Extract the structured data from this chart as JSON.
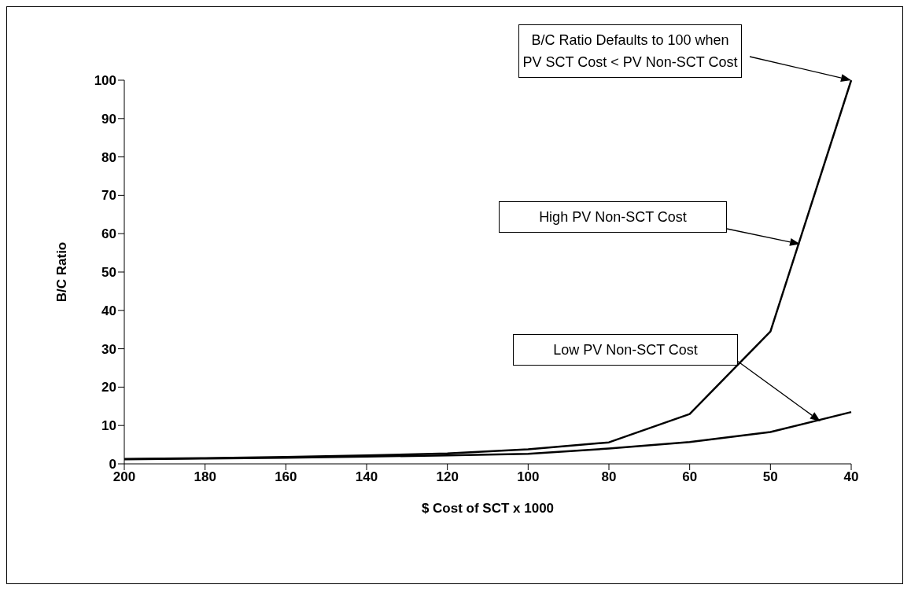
{
  "chart_data": {
    "type": "line",
    "xlabel": "$ Cost of SCT x 1000",
    "ylabel": "B/C Ratio",
    "categories": [
      "200",
      "180",
      "160",
      "140",
      "120",
      "100",
      "80",
      "60",
      "50",
      "40"
    ],
    "series": [
      {
        "color": "#000000",
        "values": [
          1.3,
          1.5,
          1.8,
          2.2,
          2.7,
          3.8,
          5.6,
          13,
          34.5,
          100
        ]
      },
      {
        "color": "#000000",
        "values": [
          1.2,
          1.4,
          1.6,
          1.9,
          2.2,
          2.6,
          4,
          5.7,
          8.3,
          13.5
        ]
      }
    ],
    "ylim": [
      0,
      100
    ],
    "yticks": [
      0,
      10,
      20,
      30,
      40,
      50,
      60,
      70,
      80,
      90,
      100
    ],
    "grid": false,
    "legend": false,
    "marker": "none",
    "line_style": "solid",
    "annotations": [
      "B/C Ratio Defaults to 100 when PV SCT Cost < PV Non-SCT Cost",
      "High PV Non-SCT Cost",
      "Low PV Non-SCT Cost"
    ]
  }
}
